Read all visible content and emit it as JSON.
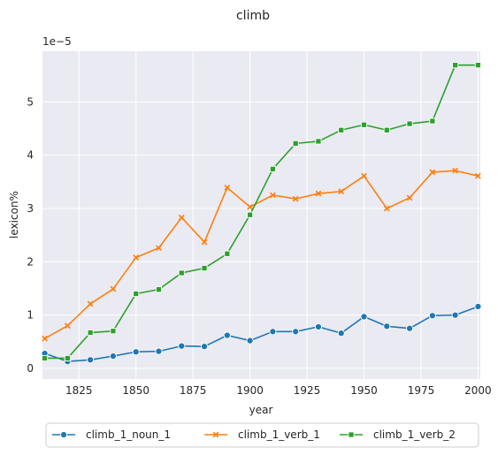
{
  "chart_data": {
    "type": "line",
    "title": "climb",
    "xlabel": "year",
    "ylabel": "lexicon%",
    "y_offset_label": "1e−5",
    "xlim": [
      1809,
      2001
    ],
    "ylim": [
      -0.2,
      5.95
    ],
    "x_ticks": [
      1825,
      1850,
      1875,
      1900,
      1925,
      1950,
      1975,
      2000
    ],
    "y_ticks": [
      0,
      1,
      2,
      3,
      4,
      5
    ],
    "grid": true,
    "legend_position": "bottom-center",
    "x": [
      1810,
      1820,
      1830,
      1840,
      1850,
      1860,
      1870,
      1880,
      1890,
      1900,
      1910,
      1920,
      1930,
      1940,
      1950,
      1960,
      1970,
      1980,
      1990,
      2000
    ],
    "series": [
      {
        "name": "climb_1_noun_1",
        "color": "#1f77b4",
        "marker": "circle",
        "values": [
          0.28,
          0.13,
          0.16,
          0.23,
          0.31,
          0.32,
          0.42,
          0.41,
          0.62,
          0.52,
          0.69,
          0.69,
          0.78,
          0.66,
          0.97,
          0.79,
          0.75,
          0.99,
          1.0,
          1.16
        ]
      },
      {
        "name": "climb_1_verb_1",
        "color": "#ff7f0e",
        "marker": "x",
        "values": [
          0.56,
          0.8,
          1.21,
          1.49,
          2.08,
          2.26,
          2.83,
          2.37,
          3.39,
          3.03,
          3.25,
          3.18,
          3.28,
          3.32,
          3.61,
          3.0,
          3.2,
          3.68,
          3.71,
          3.61
        ]
      },
      {
        "name": "climb_1_verb_2",
        "color": "#2ca02c",
        "marker": "square",
        "values": [
          0.19,
          0.19,
          0.67,
          0.7,
          1.4,
          1.48,
          1.79,
          1.88,
          2.15,
          2.88,
          3.74,
          4.22,
          4.26,
          4.47,
          4.57,
          4.47,
          4.59,
          4.64,
          5.69,
          5.69
        ]
      }
    ]
  }
}
